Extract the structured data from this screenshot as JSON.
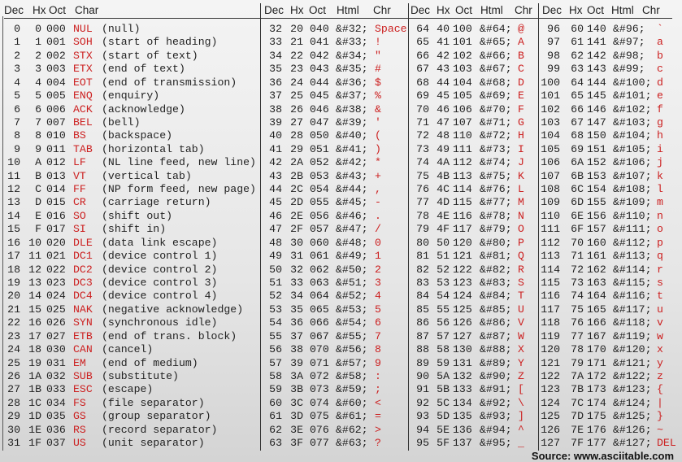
{
  "headers": {
    "s1": [
      "Dec",
      "Hx",
      "Oct",
      "Char"
    ],
    "s2": [
      "Dec",
      "Hx",
      "Oct",
      "Html",
      "Chr"
    ],
    "s3": [
      "Dec",
      "Hx",
      "Oct",
      "Html",
      "Chr"
    ],
    "s4": [
      "Dec",
      "Hx",
      "Oct",
      "Html",
      "Chr"
    ]
  },
  "colors": {
    "char": "#cc2020",
    "text": "#222222"
  },
  "control_chars": [
    [
      "0",
      "0",
      "000",
      "NUL",
      "(null)"
    ],
    [
      "1",
      "1",
      "001",
      "SOH",
      "(start of heading)"
    ],
    [
      "2",
      "2",
      "002",
      "STX",
      "(start of text)"
    ],
    [
      "3",
      "3",
      "003",
      "ETX",
      "(end of text)"
    ],
    [
      "4",
      "4",
      "004",
      "EOT",
      "(end of transmission)"
    ],
    [
      "5",
      "5",
      "005",
      "ENQ",
      "(enquiry)"
    ],
    [
      "6",
      "6",
      "006",
      "ACK",
      "(acknowledge)"
    ],
    [
      "7",
      "7",
      "007",
      "BEL",
      "(bell)"
    ],
    [
      "8",
      "8",
      "010",
      "BS",
      "(backspace)"
    ],
    [
      "9",
      "9",
      "011",
      "TAB",
      "(horizontal tab)"
    ],
    [
      "10",
      "A",
      "012",
      "LF",
      "(NL line feed, new line)"
    ],
    [
      "11",
      "B",
      "013",
      "VT",
      "(vertical tab)"
    ],
    [
      "12",
      "C",
      "014",
      "FF",
      "(NP form feed, new page)"
    ],
    [
      "13",
      "D",
      "015",
      "CR",
      "(carriage return)"
    ],
    [
      "14",
      "E",
      "016",
      "SO",
      "(shift out)"
    ],
    [
      "15",
      "F",
      "017",
      "SI",
      "(shift in)"
    ],
    [
      "16",
      "10",
      "020",
      "DLE",
      "(data link escape)"
    ],
    [
      "17",
      "11",
      "021",
      "DC1",
      "(device control 1)"
    ],
    [
      "18",
      "12",
      "022",
      "DC2",
      "(device control 2)"
    ],
    [
      "19",
      "13",
      "023",
      "DC3",
      "(device control 3)"
    ],
    [
      "20",
      "14",
      "024",
      "DC4",
      "(device control 4)"
    ],
    [
      "21",
      "15",
      "025",
      "NAK",
      "(negative acknowledge)"
    ],
    [
      "22",
      "16",
      "026",
      "SYN",
      "(synchronous idle)"
    ],
    [
      "23",
      "17",
      "027",
      "ETB",
      "(end of trans. block)"
    ],
    [
      "24",
      "18",
      "030",
      "CAN",
      "(cancel)"
    ],
    [
      "25",
      "19",
      "031",
      "EM",
      "(end of medium)"
    ],
    [
      "26",
      "1A",
      "032",
      "SUB",
      "(substitute)"
    ],
    [
      "27",
      "1B",
      "033",
      "ESC",
      "(escape)"
    ],
    [
      "28",
      "1C",
      "034",
      "FS",
      "(file separator)"
    ],
    [
      "29",
      "1D",
      "035",
      "GS",
      "(group separator)"
    ],
    [
      "30",
      "1E",
      "036",
      "RS",
      "(record separator)"
    ],
    [
      "31",
      "1F",
      "037",
      "US",
      "(unit separator)"
    ]
  ],
  "section2": [
    [
      "32",
      "20",
      "040",
      "&#32;",
      "Space"
    ],
    [
      "33",
      "21",
      "041",
      "&#33;",
      "!"
    ],
    [
      "34",
      "22",
      "042",
      "&#34;",
      "\""
    ],
    [
      "35",
      "23",
      "043",
      "&#35;",
      "#"
    ],
    [
      "36",
      "24",
      "044",
      "&#36;",
      "$"
    ],
    [
      "37",
      "25",
      "045",
      "&#37;",
      "%"
    ],
    [
      "38",
      "26",
      "046",
      "&#38;",
      "&"
    ],
    [
      "39",
      "27",
      "047",
      "&#39;",
      "'"
    ],
    [
      "40",
      "28",
      "050",
      "&#40;",
      "("
    ],
    [
      "41",
      "29",
      "051",
      "&#41;",
      ")"
    ],
    [
      "42",
      "2A",
      "052",
      "&#42;",
      "*"
    ],
    [
      "43",
      "2B",
      "053",
      "&#43;",
      "+"
    ],
    [
      "44",
      "2C",
      "054",
      "&#44;",
      ","
    ],
    [
      "45",
      "2D",
      "055",
      "&#45;",
      "-"
    ],
    [
      "46",
      "2E",
      "056",
      "&#46;",
      "."
    ],
    [
      "47",
      "2F",
      "057",
      "&#47;",
      "/"
    ],
    [
      "48",
      "30",
      "060",
      "&#48;",
      "0"
    ],
    [
      "49",
      "31",
      "061",
      "&#49;",
      "1"
    ],
    [
      "50",
      "32",
      "062",
      "&#50;",
      "2"
    ],
    [
      "51",
      "33",
      "063",
      "&#51;",
      "3"
    ],
    [
      "52",
      "34",
      "064",
      "&#52;",
      "4"
    ],
    [
      "53",
      "35",
      "065",
      "&#53;",
      "5"
    ],
    [
      "54",
      "36",
      "066",
      "&#54;",
      "6"
    ],
    [
      "55",
      "37",
      "067",
      "&#55;",
      "7"
    ],
    [
      "56",
      "38",
      "070",
      "&#56;",
      "8"
    ],
    [
      "57",
      "39",
      "071",
      "&#57;",
      "9"
    ],
    [
      "58",
      "3A",
      "072",
      "&#58;",
      ":"
    ],
    [
      "59",
      "3B",
      "073",
      "&#59;",
      ";"
    ],
    [
      "60",
      "3C",
      "074",
      "&#60;",
      "<"
    ],
    [
      "61",
      "3D",
      "075",
      "&#61;",
      "="
    ],
    [
      "62",
      "3E",
      "076",
      "&#62;",
      ">"
    ],
    [
      "63",
      "3F",
      "077",
      "&#63;",
      "?"
    ]
  ],
  "section3": [
    [
      "64",
      "40",
      "100",
      "&#64;",
      "@"
    ],
    [
      "65",
      "41",
      "101",
      "&#65;",
      "A"
    ],
    [
      "66",
      "42",
      "102",
      "&#66;",
      "B"
    ],
    [
      "67",
      "43",
      "103",
      "&#67;",
      "C"
    ],
    [
      "68",
      "44",
      "104",
      "&#68;",
      "D"
    ],
    [
      "69",
      "45",
      "105",
      "&#69;",
      "E"
    ],
    [
      "70",
      "46",
      "106",
      "&#70;",
      "F"
    ],
    [
      "71",
      "47",
      "107",
      "&#71;",
      "G"
    ],
    [
      "72",
      "48",
      "110",
      "&#72;",
      "H"
    ],
    [
      "73",
      "49",
      "111",
      "&#73;",
      "I"
    ],
    [
      "74",
      "4A",
      "112",
      "&#74;",
      "J"
    ],
    [
      "75",
      "4B",
      "113",
      "&#75;",
      "K"
    ],
    [
      "76",
      "4C",
      "114",
      "&#76;",
      "L"
    ],
    [
      "77",
      "4D",
      "115",
      "&#77;",
      "M"
    ],
    [
      "78",
      "4E",
      "116",
      "&#78;",
      "N"
    ],
    [
      "79",
      "4F",
      "117",
      "&#79;",
      "O"
    ],
    [
      "80",
      "50",
      "120",
      "&#80;",
      "P"
    ],
    [
      "81",
      "51",
      "121",
      "&#81;",
      "Q"
    ],
    [
      "82",
      "52",
      "122",
      "&#82;",
      "R"
    ],
    [
      "83",
      "53",
      "123",
      "&#83;",
      "S"
    ],
    [
      "84",
      "54",
      "124",
      "&#84;",
      "T"
    ],
    [
      "85",
      "55",
      "125",
      "&#85;",
      "U"
    ],
    [
      "86",
      "56",
      "126",
      "&#86;",
      "V"
    ],
    [
      "87",
      "57",
      "127",
      "&#87;",
      "W"
    ],
    [
      "88",
      "58",
      "130",
      "&#88;",
      "X"
    ],
    [
      "89",
      "59",
      "131",
      "&#89;",
      "Y"
    ],
    [
      "90",
      "5A",
      "132",
      "&#90;",
      "Z"
    ],
    [
      "91",
      "5B",
      "133",
      "&#91;",
      "["
    ],
    [
      "92",
      "5C",
      "134",
      "&#92;",
      "\\"
    ],
    [
      "93",
      "5D",
      "135",
      "&#93;",
      "]"
    ],
    [
      "94",
      "5E",
      "136",
      "&#94;",
      "^"
    ],
    [
      "95",
      "5F",
      "137",
      "&#95;",
      "_"
    ]
  ],
  "section4": [
    [
      "96",
      "60",
      "140",
      "&#96;",
      "`"
    ],
    [
      "97",
      "61",
      "141",
      "&#97;",
      "a"
    ],
    [
      "98",
      "62",
      "142",
      "&#98;",
      "b"
    ],
    [
      "99",
      "63",
      "143",
      "&#99;",
      "c"
    ],
    [
      "100",
      "64",
      "144",
      "&#100;",
      "d"
    ],
    [
      "101",
      "65",
      "145",
      "&#101;",
      "e"
    ],
    [
      "102",
      "66",
      "146",
      "&#102;",
      "f"
    ],
    [
      "103",
      "67",
      "147",
      "&#103;",
      "g"
    ],
    [
      "104",
      "68",
      "150",
      "&#104;",
      "h"
    ],
    [
      "105",
      "69",
      "151",
      "&#105;",
      "i"
    ],
    [
      "106",
      "6A",
      "152",
      "&#106;",
      "j"
    ],
    [
      "107",
      "6B",
      "153",
      "&#107;",
      "k"
    ],
    [
      "108",
      "6C",
      "154",
      "&#108;",
      "l"
    ],
    [
      "109",
      "6D",
      "155",
      "&#109;",
      "m"
    ],
    [
      "110",
      "6E",
      "156",
      "&#110;",
      "n"
    ],
    [
      "111",
      "6F",
      "157",
      "&#111;",
      "o"
    ],
    [
      "112",
      "70",
      "160",
      "&#112;",
      "p"
    ],
    [
      "113",
      "71",
      "161",
      "&#113;",
      "q"
    ],
    [
      "114",
      "72",
      "162",
      "&#114;",
      "r"
    ],
    [
      "115",
      "73",
      "163",
      "&#115;",
      "s"
    ],
    [
      "116",
      "74",
      "164",
      "&#116;",
      "t"
    ],
    [
      "117",
      "75",
      "165",
      "&#117;",
      "u"
    ],
    [
      "118",
      "76",
      "166",
      "&#118;",
      "v"
    ],
    [
      "119",
      "77",
      "167",
      "&#119;",
      "w"
    ],
    [
      "120",
      "78",
      "170",
      "&#120;",
      "x"
    ],
    [
      "121",
      "79",
      "171",
      "&#121;",
      "y"
    ],
    [
      "122",
      "7A",
      "172",
      "&#122;",
      "z"
    ],
    [
      "123",
      "7B",
      "173",
      "&#123;",
      "{"
    ],
    [
      "124",
      "7C",
      "174",
      "&#124;",
      "|"
    ],
    [
      "125",
      "7D",
      "175",
      "&#125;",
      "}"
    ],
    [
      "126",
      "7E",
      "176",
      "&#126;",
      "~"
    ],
    [
      "127",
      "7F",
      "177",
      "&#127;",
      "DEL"
    ]
  ],
  "source": "Source: www.asciitable.com"
}
